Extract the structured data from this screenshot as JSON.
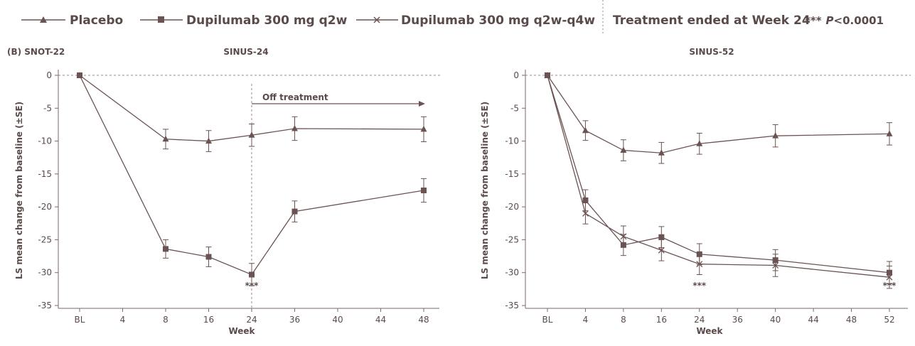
{
  "legend": {
    "placebo": "Placebo",
    "dup_q2w": "Dupilumab 300 mg q2w",
    "dup_q2w_q4w": "Dupilumab 300 mg q2w-q4w",
    "treatment_note": "Treatment ended at Week 24",
    "significance_prefix": "***",
    "significance_p": "P",
    "significance_rest": "<0.0001"
  },
  "panel_label": "(B) SNOT-22",
  "colors": {
    "line": "#6b5353",
    "axis": "#7a6a6a",
    "text": "#5a4a4a"
  },
  "chart_data": [
    {
      "type": "line",
      "title": "SINUS-24",
      "xlabel": "Week",
      "ylabel": "LS mean change from baseline (±SE)",
      "categories": [
        "BL",
        "4",
        "8",
        "16",
        "24",
        "36",
        "40",
        "44",
        "48"
      ],
      "ylim": [
        -35,
        0
      ],
      "yticks": [
        0,
        -5,
        -10,
        -15,
        -20,
        -25,
        -30,
        -35
      ],
      "baseline_dashed": true,
      "annotation": {
        "text": "Off treatment",
        "from": "24",
        "to": "48"
      },
      "significance": [
        {
          "x": "24",
          "text": "***"
        }
      ],
      "series": [
        {
          "name": "Placebo",
          "marker": "triangle",
          "x": [
            "BL",
            "8",
            "16",
            "24",
            "36",
            "48"
          ],
          "values": [
            0,
            -9.7,
            -10.0,
            -9.1,
            -8.1,
            -8.2
          ],
          "errors": [
            0,
            1.5,
            1.6,
            1.7,
            1.8,
            1.9
          ]
        },
        {
          "name": "Dupilumab 300 mg q2w",
          "marker": "square",
          "x": [
            "BL",
            "8",
            "16",
            "24",
            "36",
            "48"
          ],
          "values": [
            0,
            -26.4,
            -27.6,
            -30.3,
            -20.7,
            -17.5
          ],
          "errors": [
            0,
            1.4,
            1.5,
            1.7,
            1.6,
            1.8
          ]
        }
      ]
    },
    {
      "type": "line",
      "title": "SINUS-52",
      "xlabel": "Week",
      "ylabel": "LS mean change from baseline (±SE)",
      "categories": [
        "BL",
        "4",
        "8",
        "16",
        "24",
        "36",
        "40",
        "44",
        "48",
        "52"
      ],
      "ylim": [
        -35,
        0
      ],
      "yticks": [
        0,
        -5,
        -10,
        -15,
        -20,
        -25,
        -30,
        -35
      ],
      "baseline_dashed": true,
      "significance": [
        {
          "x": "24",
          "text": "***"
        },
        {
          "x": "52",
          "text": "***"
        }
      ],
      "series": [
        {
          "name": "Placebo",
          "marker": "triangle",
          "x": [
            "BL",
            "4",
            "8",
            "16",
            "24",
            "40",
            "52"
          ],
          "values": [
            0,
            -8.4,
            -11.4,
            -11.8,
            -10.4,
            -9.2,
            -8.9
          ],
          "errors": [
            0,
            1.5,
            1.6,
            1.6,
            1.6,
            1.7,
            1.7
          ]
        },
        {
          "name": "Dupilumab 300 mg q2w",
          "marker": "square",
          "x": [
            "BL",
            "4",
            "8",
            "16",
            "24",
            "40",
            "52"
          ],
          "values": [
            0,
            -19.0,
            -25.8,
            -24.6,
            -27.2,
            -28.1,
            -30.0
          ],
          "errors": [
            0,
            1.6,
            1.6,
            1.6,
            1.6,
            1.6,
            1.7
          ]
        },
        {
          "name": "Dupilumab 300 mg q2w-q4w",
          "marker": "x",
          "x": [
            "BL",
            "4",
            "8",
            "16",
            "24",
            "40",
            "52"
          ],
          "values": [
            0,
            -21.0,
            -24.5,
            -26.6,
            -28.7,
            -28.9,
            -30.7
          ],
          "errors": [
            0,
            1.6,
            1.6,
            1.6,
            1.6,
            1.7,
            1.7
          ]
        }
      ]
    }
  ]
}
